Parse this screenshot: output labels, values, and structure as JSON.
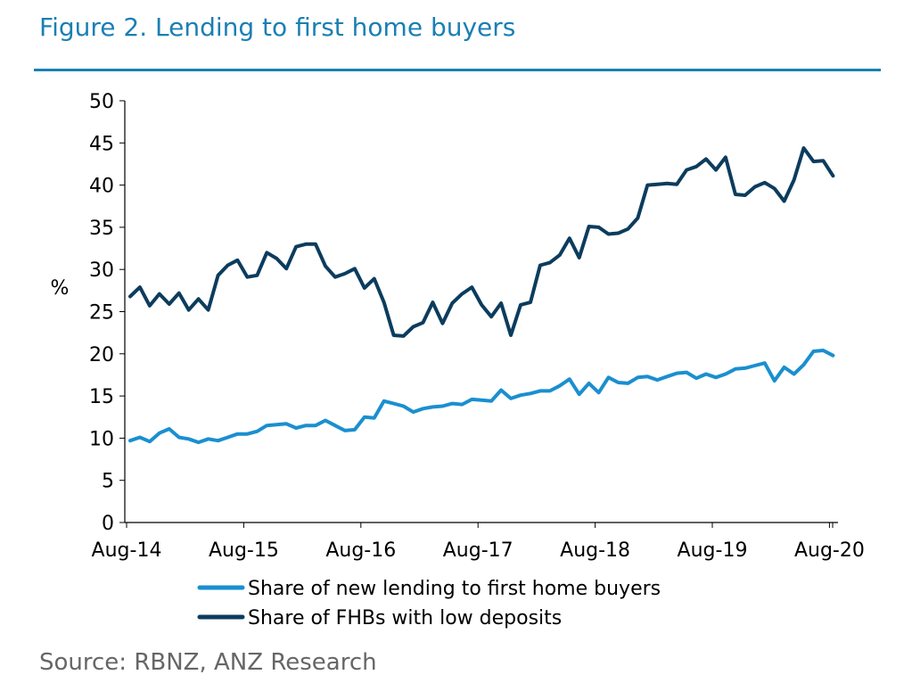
{
  "figure": {
    "title": "Figure 2. Lending to first home buyers",
    "source": "Source: RBNZ, ANZ Research"
  },
  "chart_data": {
    "type": "line",
    "ylabel": "%",
    "ylim": [
      0,
      50
    ],
    "yticks": [
      0,
      5,
      10,
      15,
      20,
      25,
      30,
      35,
      40,
      45,
      50
    ],
    "xticks": [
      "Aug-14",
      "Aug-15",
      "Aug-16",
      "Aug-17",
      "Aug-18",
      "Aug-19",
      "Aug-20"
    ],
    "grid": false,
    "legend": "bottom",
    "x_start": "Aug-14",
    "x_end": "Sep-20",
    "series": [
      {
        "name": "Share of new lending to first home buyers",
        "color": "#1a8fd0",
        "values": [
          9.7,
          10.1,
          9.6,
          10.6,
          11.1,
          10.1,
          9.9,
          9.5,
          9.9,
          9.7,
          10.1,
          10.5,
          10.5,
          10.8,
          11.5,
          11.6,
          11.7,
          11.2,
          11.5,
          11.5,
          12.1,
          11.5,
          10.9,
          11.0,
          12.5,
          12.4,
          14.4,
          14.1,
          13.8,
          13.1,
          13.5,
          13.7,
          13.8,
          14.1,
          14.0,
          14.6,
          14.5,
          14.4,
          15.7,
          14.7,
          15.1,
          15.3,
          15.6,
          15.6,
          16.2,
          17.0,
          15.2,
          16.5,
          15.4,
          17.2,
          16.6,
          16.5,
          17.2,
          17.3,
          16.9,
          17.3,
          17.7,
          17.8,
          17.1,
          17.6,
          17.2,
          17.6,
          18.2,
          18.3,
          18.6,
          18.9,
          16.8,
          18.4,
          17.6,
          18.7,
          20.3,
          20.4,
          19.8
        ]
      },
      {
        "name": "Share of FHBs with low deposits",
        "color": "#0c3c5e",
        "values": [
          26.8,
          27.9,
          25.7,
          27.1,
          25.9,
          27.2,
          25.2,
          26.5,
          25.2,
          29.3,
          30.5,
          31.1,
          29.1,
          29.3,
          32.0,
          31.3,
          30.1,
          32.7,
          33.0,
          33.0,
          30.4,
          29.1,
          29.5,
          30.1,
          27.8,
          28.9,
          26.1,
          22.2,
          22.1,
          23.2,
          23.7,
          26.1,
          23.6,
          26.0,
          27.1,
          27.9,
          25.8,
          24.4,
          26.0,
          22.2,
          25.8,
          26.1,
          30.5,
          30.8,
          31.7,
          33.7,
          31.4,
          35.1,
          35.0,
          34.2,
          34.3,
          34.8,
          36.1,
          40.0,
          40.1,
          40.2,
          40.1,
          41.8,
          42.2,
          43.1,
          41.8,
          43.3,
          38.9,
          38.8,
          39.8,
          40.3,
          39.6,
          38.1,
          40.6,
          44.4,
          42.8,
          42.9,
          41.1
        ]
      }
    ]
  }
}
